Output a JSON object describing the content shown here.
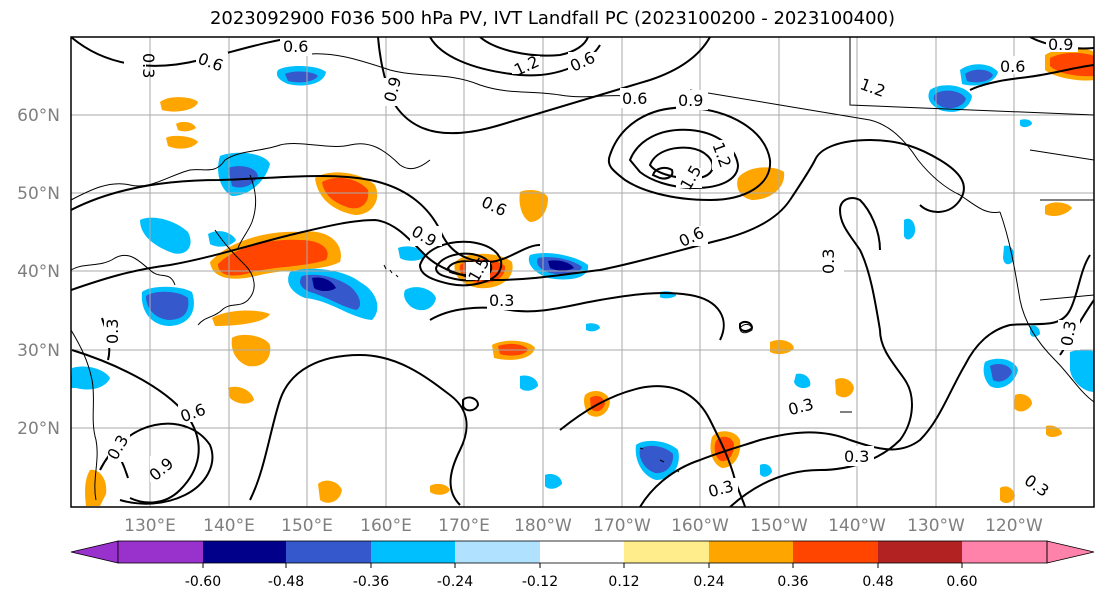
{
  "title": "2023092900 F036 500 hPa PV, IVT Landfall PC (2023100200 - 2023100400)",
  "lat_labels": [
    "60°N",
    "50°N",
    "40°N",
    "30°N",
    "20°N"
  ],
  "lon_labels": [
    "130°E",
    "140°E",
    "150°E",
    "160°E",
    "170°E",
    "180°W",
    "170°W",
    "160°W",
    "150°W",
    "140°W",
    "130°W",
    "120°W"
  ],
  "colorbar": {
    "colors": [
      "#9932cc",
      "#00008b",
      "#3558cc",
      "#00bfff",
      "#b0e2ff",
      "#ffffff",
      "#ffec8b",
      "#ffa500",
      "#ff4500",
      "#b22222",
      "#ff82ab"
    ],
    "tick_labels": [
      "-0.60",
      "-0.48",
      "-0.36",
      "-0.24",
      "-0.12",
      "0.12",
      "0.24",
      "0.36",
      "0.48",
      "0.60"
    ]
  },
  "contour_labels": [
    "0.3",
    "0.6",
    "0.9",
    "1.2",
    "1.5"
  ],
  "colors": {
    "grid": "#aaaaaa",
    "contour": "#000000",
    "frame": "#000000"
  }
}
